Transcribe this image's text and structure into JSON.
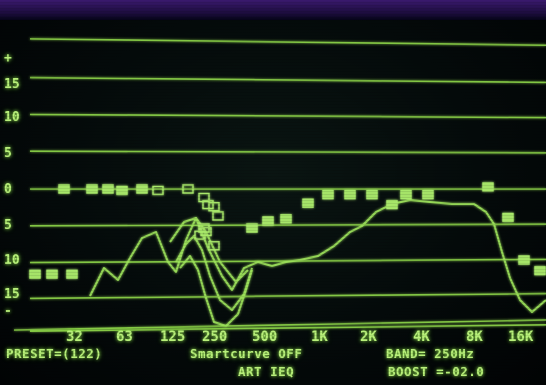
{
  "y_labels": [
    "+",
    "15",
    "10",
    "5",
    "0",
    "5",
    "10",
    "15",
    "-"
  ],
  "x_labels": [
    "32",
    "63",
    "125",
    "250",
    "500",
    "1K",
    "2K",
    "4K",
    "8K",
    "16K"
  ],
  "status": {
    "preset": "PRESET=(122)",
    "smartcurve": "Smartcurve OFF",
    "band": "BAND=  250Hz",
    "device": "ART IEQ",
    "boost": "BOOST =-02.0"
  },
  "colors": {
    "trace": "#9be05a",
    "grid": "#8fd84a",
    "marker": "#a8e86a",
    "text": "#b8f07a"
  },
  "chart_data": {
    "type": "line",
    "x": [
      "32",
      "63",
      "125",
      "250",
      "500",
      "1K",
      "2K",
      "4K",
      "8K",
      "16K"
    ],
    "xscale": "log",
    "ylim": [
      -15,
      15
    ],
    "grid": true,
    "band_markers_db": [
      -12,
      -12,
      -12,
      0,
      0,
      0,
      -0.2,
      0,
      -0.2,
      0,
      -1.2,
      -2.5,
      -2.2,
      -3.8,
      -6,
      -8,
      -5.5,
      -6.5,
      -5.5,
      -4.5,
      -4.2,
      -2,
      -0.8,
      -0.8,
      -0.8,
      -2.2,
      -0.8,
      -0.8,
      0.3,
      -4,
      -10,
      -11.5
    ],
    "boost_db": -2.0,
    "selected_band": "250Hz",
    "preset": 122,
    "smartcurve": "OFF"
  }
}
